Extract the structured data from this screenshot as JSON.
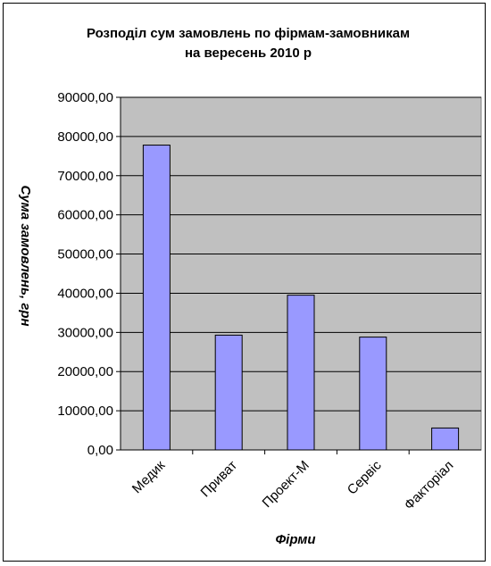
{
  "chart_data": {
    "type": "bar",
    "title_lines": [
      "Розподіл сум замовлень по фірмам-замовникам",
      "на вересень 2010 р"
    ],
    "xlabel": "Фірми",
    "ylabel": "Сума замовлень, грн",
    "categories": [
      "Медик",
      "Приват",
      "Проект-М",
      "Сервіс",
      "Факторіал"
    ],
    "values": [
      77800,
      29300,
      39500,
      28800,
      5600
    ],
    "ylim": [
      0,
      90000
    ],
    "y_ticks": [
      {
        "value": 0,
        "label": "0,00"
      },
      {
        "value": 10000,
        "label": "10000,00"
      },
      {
        "value": 20000,
        "label": "20000,00"
      },
      {
        "value": 30000,
        "label": "30000,00"
      },
      {
        "value": 40000,
        "label": "40000,00"
      },
      {
        "value": 50000,
        "label": "50000,00"
      },
      {
        "value": 60000,
        "label": "60000,00"
      },
      {
        "value": 70000,
        "label": "70000,00"
      },
      {
        "value": 80000,
        "label": "80000,00"
      },
      {
        "value": 90000,
        "label": "90000,00"
      }
    ],
    "grid": true,
    "legend": "none",
    "colors": {
      "bar_fill": "#9999ff",
      "plot_background": "#c0c0c0",
      "gridline": "#000000"
    }
  }
}
